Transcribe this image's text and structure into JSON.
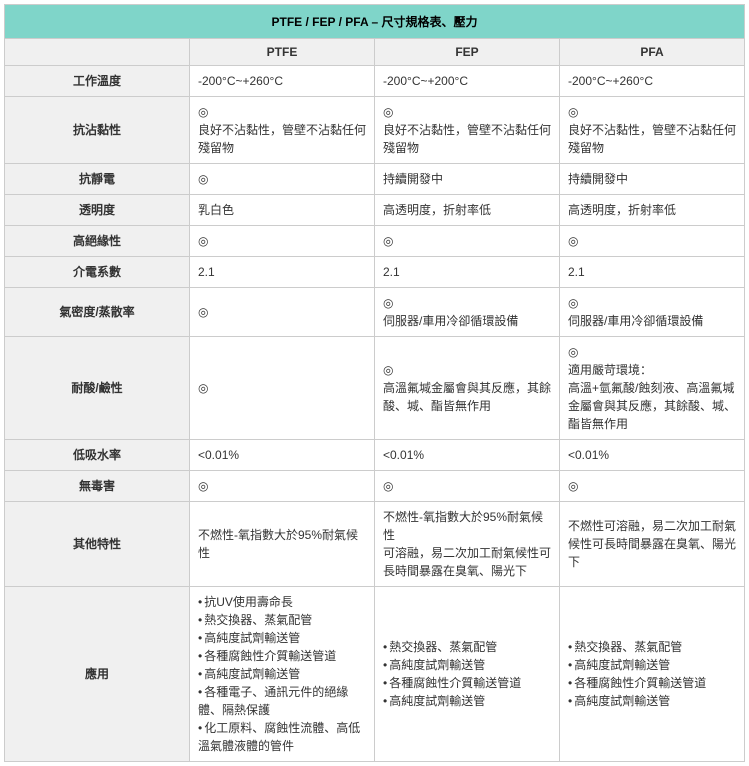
{
  "title": "PTFE / FEP / PFA – 尺寸規格表、壓力",
  "columns": [
    "PTFE",
    "FEP",
    "PFA"
  ],
  "rows": [
    {
      "label": "工作溫度",
      "cells": [
        "-200°C~+260°C",
        "-200°C~+200°C",
        "-200°C~+260°C"
      ]
    },
    {
      "label": "抗沾黏性",
      "cells": [
        "◎\n良好不沾黏性，管壁不沾黏任何殘留物",
        "◎\n良好不沾黏性，管壁不沾黏任何殘留物",
        "◎\n良好不沾黏性，管壁不沾黏任何殘留物"
      ]
    },
    {
      "label": "抗靜電",
      "cells": [
        "◎",
        "持續開發中",
        "持續開發中"
      ]
    },
    {
      "label": "透明度",
      "cells": [
        "乳白色",
        "高透明度，折射率低",
        "高透明度，折射率低"
      ]
    },
    {
      "label": "高絕緣性",
      "cells": [
        "◎",
        "◎",
        "◎"
      ]
    },
    {
      "label": "介電系數",
      "cells": [
        "2.1",
        "2.1",
        "2.1"
      ]
    },
    {
      "label": "氣密度/蒸散率",
      "cells": [
        "◎",
        "◎\n伺服器/車用冷卻循環設備",
        "◎\n伺服器/車用冷卻循環設備"
      ]
    },
    {
      "label": "耐酸/鹼性",
      "cells": [
        "◎",
        "◎\n高溫氟堿金屬會與其反應，其餘酸、堿、酯皆無作用",
        "◎\n適用嚴苛環境：\n高溫+氫氟酸/蝕刻液、高溫氟堿金屬會與其反應，其餘酸、堿、酯皆無作用"
      ]
    },
    {
      "label": "低吸水率",
      "cells": [
        "<0.01%",
        "<0.01%",
        "<0.01%"
      ]
    },
    {
      "label": "無毒害",
      "cells": [
        "◎",
        "◎",
        "◎"
      ]
    },
    {
      "label": "其他特性",
      "cells": [
        "不燃性-氧指數大於95%耐氣候性",
        "不燃性-氧指數大於95%耐氣候性\n可溶融，易二次加工耐氣候性可長時間暴露在臭氧、陽光下",
        "不燃性可溶融，易二次加工耐氣候性可長時間暴露在臭氧、陽光下"
      ]
    }
  ],
  "appRow": {
    "label": "應用",
    "lists": [
      [
        "抗UV使用壽命長",
        "熱交換器、蒸氣配管",
        "高純度試劑輸送管",
        "各種腐蝕性介質輸送管道",
        "高純度試劑輸送管",
        "各種電子、通訊元件的絕緣體、隔熱保護",
        "化工原料、腐蝕性流體、高低溫氣體液體的管件"
      ],
      [
        "熱交換器、蒸氣配管",
        "高純度試劑輸送管",
        "各種腐蝕性介質輸送管道",
        "高純度試劑輸送管"
      ],
      [
        "熱交換器、蒸氣配管",
        "高純度試劑輸送管",
        "各種腐蝕性介質輸送管道",
        "高純度試劑輸送管"
      ]
    ]
  },
  "style": {
    "title_bg": "#7fd5c9",
    "header_bg": "#f0f0f0",
    "border_color": "#cccccc",
    "font_size": 12,
    "col_label_width": 90,
    "col_data_width": 217
  }
}
